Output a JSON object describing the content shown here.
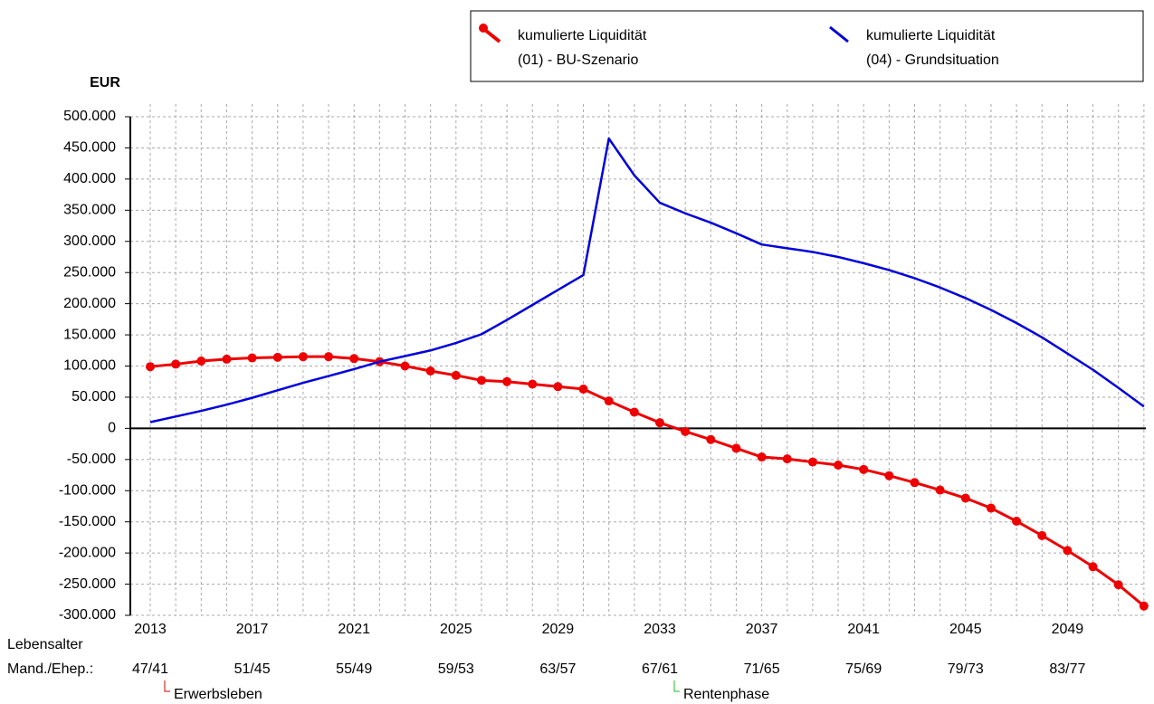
{
  "chart_data": {
    "type": "line",
    "y_axis_label": "EUR",
    "categories": [
      "2013",
      null,
      null,
      null,
      "2017",
      null,
      null,
      null,
      "2021",
      null,
      null,
      null,
      "2025",
      null,
      null,
      null,
      "2029",
      null,
      null,
      null,
      "2033",
      null,
      null,
      null,
      "2037",
      null,
      null,
      null,
      "2041",
      null,
      null,
      null,
      "2045",
      null,
      null,
      null,
      "2049",
      null,
      null,
      null
    ],
    "age_row_label": [
      "Lebensalter",
      "Mand./Ehep.:"
    ],
    "ages": [
      "47/41",
      null,
      null,
      null,
      "51/45",
      null,
      null,
      null,
      "55/49",
      null,
      null,
      null,
      "59/53",
      null,
      null,
      null,
      "63/57",
      null,
      null,
      null,
      "67/61",
      null,
      null,
      null,
      "71/65",
      null,
      null,
      null,
      "75/69",
      null,
      null,
      null,
      "79/73",
      null,
      null,
      null,
      "83/77",
      null,
      null,
      null
    ],
    "phases": [
      {
        "name": "Erwerbsleben",
        "start": "2013",
        "color": "#cc0000"
      },
      {
        "name": "Rentenphase",
        "start": "2033",
        "color": "#22bb22"
      }
    ],
    "series": [
      {
        "name": "kumulierte Liquidität",
        "sub": "(01) - BU-Szenario",
        "color": "#ee0000",
        "markers": true,
        "values": [
          99000,
          103000,
          108000,
          111000,
          113000,
          114000,
          115000,
          115000,
          112000,
          107000,
          100000,
          92000,
          85000,
          77000,
          75000,
          71000,
          67000,
          63000,
          44000,
          26000,
          9000,
          -5000,
          -18000,
          -32000,
          -46000,
          -49000,
          -54000,
          -59000,
          -66000,
          -76000,
          -87000,
          -99000,
          -112000,
          -128000,
          -149000,
          -172000,
          -196000,
          -222000,
          -251000,
          -285000
        ]
      },
      {
        "name": "kumulierte Liquidität",
        "sub": "(04) - Grundsituation",
        "color": "#0000dd",
        "markers": false,
        "values": [
          10000,
          19000,
          28000,
          38000,
          49000,
          61000,
          73000,
          84000,
          95000,
          107000,
          116000,
          125000,
          137000,
          151000,
          174000,
          198000,
          222000,
          246000,
          465000,
          406000,
          362000,
          345000,
          330000,
          313000,
          295000,
          289000,
          283000,
          275000,
          265000,
          254000,
          241000,
          226000,
          209000,
          190000,
          169000,
          146000,
          120000,
          94000,
          65000,
          35000
        ]
      }
    ],
    "ylim": [
      -300000,
      500000
    ],
    "yticks": [
      {
        "value": -300000,
        "label": "-300.000"
      },
      {
        "value": -250000,
        "label": "-250.000"
      },
      {
        "value": -200000,
        "label": "-200.000"
      },
      {
        "value": -150000,
        "label": "-150.000"
      },
      {
        "value": -100000,
        "label": "-100.000"
      },
      {
        "value": -50000,
        "label": "-50.000"
      },
      0,
      {
        "value": 50000,
        "label": "50.000"
      },
      {
        "value": 100000,
        "label": "100.000"
      },
      {
        "value": 150000,
        "label": "150.000"
      },
      {
        "value": 200000,
        "label": "200.000"
      },
      {
        "value": 250000,
        "label": "250.000"
      },
      {
        "value": 300000,
        "label": "300.000"
      },
      {
        "value": 350000,
        "label": "350.000"
      },
      {
        "value": 400000,
        "label": "400.000"
      },
      {
        "value": 450000,
        "label": "450.000"
      },
      {
        "value": 500000,
        "label": "500.000"
      }
    ],
    "grid": true
  }
}
